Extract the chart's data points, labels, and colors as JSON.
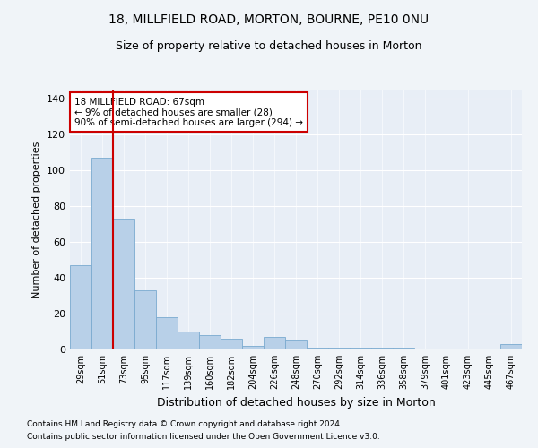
{
  "title1": "18, MILLFIELD ROAD, MORTON, BOURNE, PE10 0NU",
  "title2": "Size of property relative to detached houses in Morton",
  "xlabel": "Distribution of detached houses by size in Morton",
  "ylabel": "Number of detached properties",
  "categories": [
    "29sqm",
    "51sqm",
    "73sqm",
    "95sqm",
    "117sqm",
    "139sqm",
    "160sqm",
    "182sqm",
    "204sqm",
    "226sqm",
    "248sqm",
    "270sqm",
    "292sqm",
    "314sqm",
    "336sqm",
    "358sqm",
    "379sqm",
    "401sqm",
    "423sqm",
    "445sqm",
    "467sqm"
  ],
  "values": [
    47,
    107,
    73,
    33,
    18,
    10,
    8,
    6,
    2,
    7,
    5,
    1,
    1,
    1,
    1,
    1,
    0,
    0,
    0,
    0,
    3
  ],
  "bar_color": "#b8d0e8",
  "bar_edge_color": "#7aaacf",
  "vline_color": "#cc0000",
  "vline_x": 1.5,
  "annotation_box_text": "18 MILLFIELD ROAD: 67sqm\n← 9% of detached houses are smaller (28)\n90% of semi-detached houses are larger (294) →",
  "annotation_box_color": "#cc0000",
  "annotation_fill": "white",
  "ylim": [
    0,
    145
  ],
  "yticks": [
    0,
    20,
    40,
    60,
    80,
    100,
    120,
    140
  ],
  "footer1": "Contains HM Land Registry data © Crown copyright and database right 2024.",
  "footer2": "Contains public sector information licensed under the Open Government Licence v3.0.",
  "bg_color": "#f0f4f8",
  "plot_bg": "#e8eef6",
  "title1_fontsize": 10,
  "title2_fontsize": 9,
  "ylabel_fontsize": 8,
  "xlabel_fontsize": 9
}
